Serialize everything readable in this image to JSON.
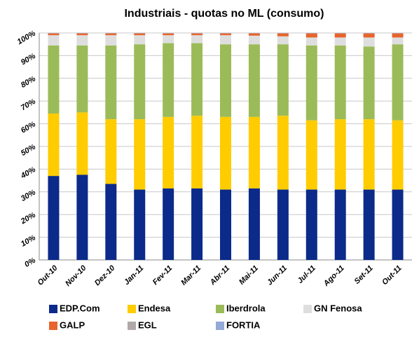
{
  "chart_data": {
    "type": "stacked_bar",
    "title": "Industriais - quotas no ML (consumo)",
    "categories": [
      "Out-10",
      "Nov-10",
      "Dez-10",
      "Jan-11",
      "Fev-11",
      "Mar-11",
      "Abr-11",
      "Mai-11",
      "Jun-11",
      "Jul-11",
      "Ago-11",
      "Set-11",
      "Out-11"
    ],
    "series": [
      {
        "name": "EDP.Com",
        "color": "#0b2a8a",
        "values": [
          37,
          37.5,
          33.5,
          31,
          31.5,
          31.5,
          31,
          31.5,
          31,
          31,
          31,
          31,
          31
        ]
      },
      {
        "name": "Endesa",
        "color": "#ffcc00",
        "values": [
          27.5,
          27.5,
          28.5,
          31,
          31.5,
          32,
          32,
          31.5,
          32.5,
          30.5,
          31,
          31,
          30.5
        ]
      },
      {
        "name": "Iberdrola",
        "color": "#9bbb59",
        "values": [
          30,
          29.5,
          32.5,
          33,
          32.5,
          32,
          32,
          32,
          31.5,
          33,
          32.5,
          32,
          33.5
        ]
      },
      {
        "name": "GN Fenosa",
        "color": "#dedede",
        "values": [
          4.5,
          4.5,
          4.5,
          4,
          3.5,
          3.5,
          4,
          3.8,
          3.5,
          3.5,
          3.5,
          4,
          3
        ]
      },
      {
        "name": "GALP",
        "color": "#e8642c",
        "values": [
          0.8,
          0.8,
          0.8,
          0.8,
          0.8,
          0.8,
          0.8,
          1,
          1.3,
          1.8,
          1.8,
          1.8,
          1.8
        ]
      },
      {
        "name": "EGL",
        "color": "#b1a9a9",
        "values": [
          0.1,
          0.1,
          0.1,
          0.1,
          0.1,
          0.1,
          0.1,
          0.1,
          0.1,
          0.1,
          0.1,
          0.1,
          0.1
        ]
      },
      {
        "name": "FORTIA",
        "color": "#93a9d6",
        "values": [
          0.1,
          0.1,
          0.1,
          0.1,
          0.1,
          0.1,
          0.1,
          0.1,
          0.1,
          0.1,
          0.1,
          0.1,
          0.1
        ]
      }
    ],
    "ylim": [
      0,
      100
    ],
    "yticks": [
      {
        "value": 0,
        "label": "0%"
      },
      {
        "value": 10,
        "label": "10%"
      },
      {
        "value": 20,
        "label": "20%"
      },
      {
        "value": 30,
        "label": "30%"
      },
      {
        "value": 40,
        "label": "40%"
      },
      {
        "value": 50,
        "label": "50%"
      },
      {
        "value": 60,
        "label": "60%"
      },
      {
        "value": 70,
        "label": "70%"
      },
      {
        "value": 80,
        "label": "80%"
      },
      {
        "value": 90,
        "label": "90%"
      },
      {
        "value": 100,
        "label": "100%"
      }
    ],
    "grid": true,
    "legend": "bottom"
  }
}
